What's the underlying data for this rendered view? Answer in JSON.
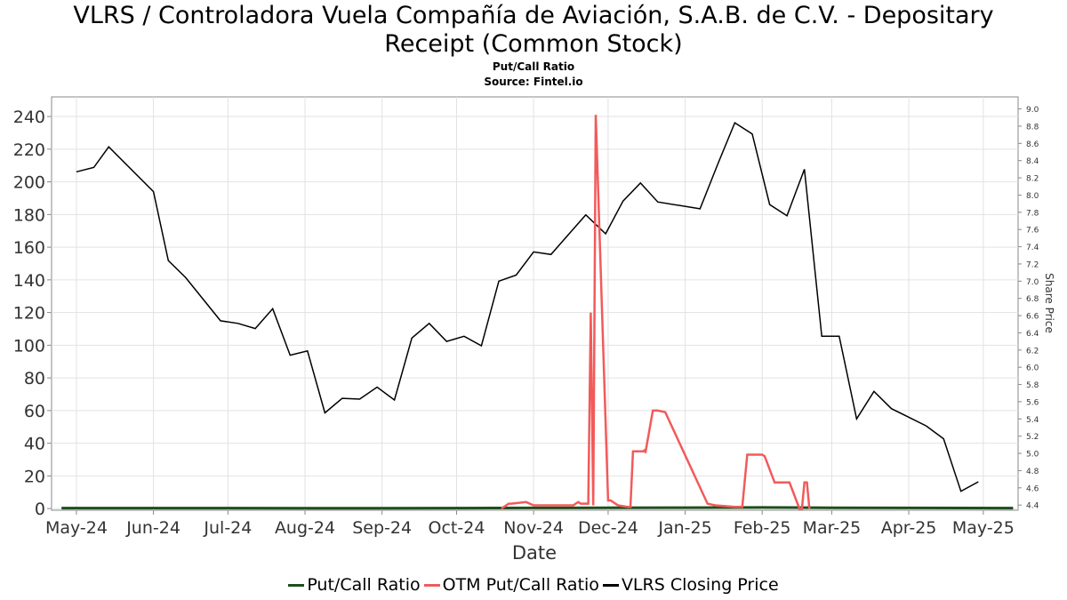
{
  "header": {
    "title_line1": "VLRS / Controladora Vuela Compañía de Aviación, S.A.B. de C.V. - Depositary",
    "title_line2": "Receipt (Common Stock)",
    "subtitle": "Put/Call Ratio",
    "source": "Source: Fintel.io"
  },
  "chart_data": {
    "type": "line",
    "xlabel": "Date",
    "ylabel": "",
    "y2label": "Share Price",
    "x_ticks": [
      "May-24",
      "Jun-24",
      "Jul-24",
      "Aug-24",
      "Sep-24",
      "Oct-24",
      "Nov-24",
      "Dec-24",
      "Jan-25",
      "Feb-25",
      "Mar-25",
      "Apr-25",
      "May-25"
    ],
    "x_tick_dates": [
      "2024-05-01",
      "2024-06-01",
      "2024-07-01",
      "2024-08-01",
      "2024-09-01",
      "2024-10-01",
      "2024-11-01",
      "2024-12-01",
      "2025-01-01",
      "2025-02-01",
      "2025-03-01",
      "2025-04-01",
      "2025-05-01"
    ],
    "xlim": [
      "2024-04-21",
      "2025-05-15"
    ],
    "ylim": [
      -1,
      252
    ],
    "y_ticks": [
      0,
      20,
      40,
      60,
      80,
      100,
      120,
      140,
      160,
      180,
      200,
      220,
      240
    ],
    "y2lim": [
      4.34,
      9.14
    ],
    "y2_ticks": [
      "4.4",
      "4.6",
      "4.8",
      "5.0",
      "5.2",
      "5.4",
      "5.6",
      "5.8",
      "6.0",
      "6.2",
      "6.4",
      "6.6",
      "6.8",
      "7.0",
      "7.2",
      "7.4",
      "7.6",
      "7.8",
      "8.0",
      "8.2",
      "8.4",
      "8.6",
      "8.8",
      "9.0"
    ],
    "grid": true,
    "legend_position": "bottom",
    "series": [
      {
        "name": "Put/Call Ratio",
        "axis": "left",
        "color": "#1f4d1f",
        "x": [
          "2024-04-25",
          "2024-06-01",
          "2024-07-01",
          "2024-08-01",
          "2024-09-01",
          "2024-10-01",
          "2024-11-01",
          "2024-12-01",
          "2025-01-01",
          "2025-02-01",
          "2025-03-01",
          "2025-04-01",
          "2025-05-13"
        ],
        "y": [
          0.3,
          0.3,
          0.3,
          0.2,
          0.2,
          0.3,
          0.4,
          0.5,
          0.6,
          0.7,
          0.5,
          0.4,
          0.3
        ]
      },
      {
        "name": "OTM Put/Call Ratio",
        "axis": "left",
        "color": "#f25a5a",
        "x": [
          "2024-10-19",
          "2024-10-22",
          "2024-10-23",
          "2024-10-29",
          "2024-11-01",
          "2024-11-05",
          "2024-11-10",
          "2024-11-17",
          "2024-11-18",
          "2024-11-18",
          "2024-11-19",
          "2024-11-20",
          "2024-11-23",
          "2024-11-24",
          "2024-11-25",
          "2024-11-25",
          "2024-11-26",
          "2024-12-01",
          "2024-12-02",
          "2024-12-05",
          "2024-12-09",
          "2024-12-10",
          "2024-12-10",
          "2024-12-11",
          "2024-12-15",
          "2024-12-16",
          "2024-12-16",
          "2024-12-19",
          "2024-12-21",
          "2024-12-24",
          "2025-01-10",
          "2025-01-13",
          "2025-01-21",
          "2025-01-23",
          "2025-01-24",
          "2025-01-26",
          "2025-02-01",
          "2025-02-02",
          "2025-02-06",
          "2025-02-12",
          "2025-02-16",
          "2025-02-17",
          "2025-02-18",
          "2025-02-19",
          "2025-02-20"
        ],
        "y": [
          0,
          3,
          3,
          4,
          2,
          2,
          2,
          2,
          3,
          3,
          4,
          3,
          3,
          120,
          2,
          2,
          241,
          5,
          5,
          2,
          1,
          1,
          2,
          35,
          35,
          36,
          34,
          60,
          60,
          59,
          3,
          2,
          1,
          1,
          1,
          33,
          33,
          32,
          16,
          16,
          0,
          0,
          16,
          16,
          0
        ]
      },
      {
        "name": "VLRS Closing Price",
        "axis": "right",
        "color": "#000000",
        "x": [
          "2024-05-01",
          "2024-05-08",
          "2024-05-14",
          "2024-06-01",
          "2024-06-07",
          "2024-06-14",
          "2024-06-28",
          "2024-07-05",
          "2024-07-12",
          "2024-07-19",
          "2024-07-26",
          "2024-08-02",
          "2024-08-09",
          "2024-08-16",
          "2024-08-23",
          "2024-08-30",
          "2024-09-06",
          "2024-09-13",
          "2024-09-20",
          "2024-09-27",
          "2024-10-04",
          "2024-10-11",
          "2024-10-18",
          "2024-10-25",
          "2024-11-01",
          "2024-11-08",
          "2024-11-15",
          "2024-11-22",
          "2024-11-30",
          "2024-12-07",
          "2024-12-14",
          "2024-12-21",
          "2025-01-07",
          "2025-01-14",
          "2025-01-21",
          "2025-01-28",
          "2025-02-04",
          "2025-02-11",
          "2025-02-18",
          "2025-02-25",
          "2025-03-04",
          "2025-03-11",
          "2025-03-18",
          "2025-03-25",
          "2025-04-08",
          "2025-04-15",
          "2025-04-22",
          "2025-04-29"
        ],
        "y": [
          8.27,
          8.32,
          8.56,
          8.04,
          7.24,
          7.04,
          6.54,
          6.51,
          6.45,
          6.68,
          6.14,
          6.19,
          5.47,
          5.64,
          5.63,
          5.77,
          5.62,
          6.34,
          6.51,
          6.3,
          6.36,
          6.25,
          7.0,
          7.07,
          7.34,
          7.31,
          7.54,
          7.77,
          7.55,
          7.93,
          8.14,
          7.92,
          7.84,
          8.35,
          8.84,
          8.71,
          7.89,
          7.76,
          8.3,
          6.36,
          6.36,
          5.4,
          5.72,
          5.52,
          5.32,
          5.17,
          4.56,
          4.67
        ]
      }
    ]
  }
}
